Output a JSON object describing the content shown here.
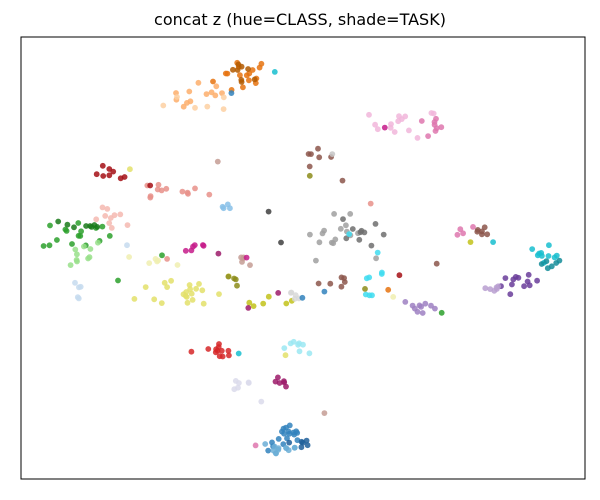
{
  "chart_data": {
    "type": "scatter",
    "title": "concat z (hue=CLASS, shade=TASK)",
    "xlabel": "",
    "ylabel": "",
    "axis_ticks": "none",
    "grid": false,
    "legend": "none",
    "xlim": [
      0,
      100
    ],
    "ylim": [
      0,
      100
    ],
    "clusters": [
      {
        "color": "#e6730f",
        "cx": 39.4,
        "cy": 91.1,
        "sx": 2.6,
        "sy": 2.2,
        "n": 16
      },
      {
        "color": "#b35a00",
        "cx": 39.6,
        "cy": 92.9,
        "sx": 1.6,
        "sy": 1.4,
        "n": 8
      },
      {
        "color": "#fdae6b",
        "cx": 32.6,
        "cy": 86.4,
        "sx": 3.1,
        "sy": 1.6,
        "n": 12
      },
      {
        "color": "#fdd0a2",
        "cx": 31.4,
        "cy": 84.6,
        "sx": 3.1,
        "sy": 1.2,
        "n": 6
      },
      {
        "color": "#f1b6da",
        "cx": 68.1,
        "cy": 80.4,
        "sx": 3.1,
        "sy": 1.6,
        "n": 14
      },
      {
        "color": "#de77ae",
        "cx": 72.2,
        "cy": 79.7,
        "sx": 1.6,
        "sy": 1.4,
        "n": 8
      },
      {
        "color": "#8c564b",
        "cx": 52.5,
        "cy": 72.4,
        "sx": 1.4,
        "sy": 1.4,
        "n": 6
      },
      {
        "color": "#a50f15",
        "cx": 15.9,
        "cy": 69.1,
        "sx": 2.2,
        "sy": 0.8,
        "n": 8
      },
      {
        "color": "#e7918a",
        "cx": 24.7,
        "cy": 64.9,
        "sx": 4.1,
        "sy": 1.0,
        "n": 12
      },
      {
        "color": "#f4b8b0",
        "cx": 16.8,
        "cy": 58.4,
        "sx": 2.0,
        "sy": 1.4,
        "n": 10
      },
      {
        "color": "#2ca02c",
        "cx": 9.9,
        "cy": 55.4,
        "sx": 3.1,
        "sy": 1.8,
        "n": 16
      },
      {
        "color": "#1a7a1a",
        "cx": 11.0,
        "cy": 57.3,
        "sx": 2.0,
        "sy": 0.9,
        "n": 8
      },
      {
        "color": "#98df8a",
        "cx": 8.5,
        "cy": 51.1,
        "sx": 3.4,
        "sy": 1.6,
        "n": 10
      },
      {
        "color": "#c6dbef",
        "cx": 9.8,
        "cy": 42.6,
        "sx": 0.6,
        "sy": 1.6,
        "n": 5
      },
      {
        "color": "#87bfe8",
        "cx": 36.9,
        "cy": 61.7,
        "sx": 1.1,
        "sy": 0.4,
        "n": 4
      },
      {
        "color": "#c51b8a",
        "cx": 30.6,
        "cy": 52.6,
        "sx": 1.5,
        "sy": 0.8,
        "n": 6
      },
      {
        "color": "#e3e16a",
        "cx": 30.1,
        "cy": 42.6,
        "sx": 4.6,
        "sy": 2.2,
        "n": 22
      },
      {
        "color": "#f0efb0",
        "cx": 24.0,
        "cy": 48.5,
        "sx": 2.2,
        "sy": 1.5,
        "n": 6
      },
      {
        "color": "#8c8c1a",
        "cx": 37.3,
        "cy": 45.4,
        "sx": 1.1,
        "sy": 0.8,
        "n": 4
      },
      {
        "color": "#c2c21a",
        "cx": 43.4,
        "cy": 40.6,
        "sx": 2.1,
        "sy": 0.7,
        "n": 6
      },
      {
        "color": "#a0a0a0",
        "cx": 55.7,
        "cy": 54.7,
        "sx": 3.3,
        "sy": 2.4,
        "n": 16
      },
      {
        "color": "#6e6e6e",
        "cx": 60.7,
        "cy": 56.2,
        "sx": 2.0,
        "sy": 2.2,
        "n": 10
      },
      {
        "color": "#d8d8d8",
        "cx": 48.0,
        "cy": 41.5,
        "sx": 1.6,
        "sy": 0.8,
        "n": 5
      },
      {
        "color": "#8c564b",
        "cx": 55.0,
        "cy": 44.8,
        "sx": 1.1,
        "sy": 0.8,
        "n": 6
      },
      {
        "color": "#c49c94",
        "cx": 39.2,
        "cy": 49.1,
        "sx": 1.1,
        "sy": 1.2,
        "n": 4
      },
      {
        "color": "#8c564b",
        "cx": 82.0,
        "cy": 55.9,
        "sx": 1.3,
        "sy": 0.6,
        "n": 6
      },
      {
        "color": "#de77ae",
        "cx": 78.1,
        "cy": 56.0,
        "sx": 1.0,
        "sy": 0.6,
        "n": 4
      },
      {
        "color": "#17becf",
        "cx": 93.5,
        "cy": 51.7,
        "sx": 1.3,
        "sy": 1.3,
        "n": 10
      },
      {
        "color": "#138c99",
        "cx": 93.8,
        "cy": 49.1,
        "sx": 1.0,
        "sy": 1.0,
        "n": 6
      },
      {
        "color": "#6a3d9a",
        "cx": 88.5,
        "cy": 44.0,
        "sx": 1.7,
        "sy": 1.0,
        "n": 12
      },
      {
        "color": "#b89fd0",
        "cx": 84.0,
        "cy": 43.2,
        "sx": 1.6,
        "sy": 0.5,
        "n": 6
      },
      {
        "color": "#9e80c2",
        "cx": 71.1,
        "cy": 38.8,
        "sx": 1.7,
        "sy": 1.0,
        "n": 10
      },
      {
        "color": "#3fdcf0",
        "cx": 62.2,
        "cy": 46.4,
        "sx": 1.1,
        "sy": 2.2,
        "n": 8
      },
      {
        "color": "#9be7f2",
        "cx": 49.7,
        "cy": 29.7,
        "sx": 2.1,
        "sy": 0.7,
        "n": 8
      },
      {
        "color": "#d62728",
        "cx": 34.4,
        "cy": 29.0,
        "sx": 2.6,
        "sy": 0.7,
        "n": 12
      },
      {
        "color": "#9c1b6a",
        "cx": 45.0,
        "cy": 22.0,
        "sx": 0.9,
        "sy": 0.5,
        "n": 6
      },
      {
        "color": "#dadaeb",
        "cx": 39.6,
        "cy": 21.4,
        "sx": 1.3,
        "sy": 0.6,
        "n": 6
      },
      {
        "color": "#3182bd",
        "cx": 47.2,
        "cy": 9.2,
        "sx": 1.7,
        "sy": 1.5,
        "n": 18
      },
      {
        "color": "#6baed6",
        "cx": 46.1,
        "cy": 7.0,
        "sx": 2.0,
        "sy": 1.1,
        "n": 12
      },
      {
        "color": "#1f5f9a",
        "cx": 49.8,
        "cy": 8.3,
        "sx": 1.1,
        "sy": 1.0,
        "n": 6
      }
    ],
    "outliers": [
      {
        "x": 34.9,
        "y": 71.8,
        "color": "#c49c94"
      },
      {
        "x": 19.3,
        "y": 70.1,
        "color": "#e3e16a"
      },
      {
        "x": 22.9,
        "y": 66.4,
        "color": "#a50f15"
      },
      {
        "x": 43.9,
        "y": 60.5,
        "color": "#404040"
      },
      {
        "x": 51.2,
        "y": 68.6,
        "color": "#8c8c1a"
      },
      {
        "x": 57.0,
        "y": 67.5,
        "color": "#8c564b"
      },
      {
        "x": 45.0,
        "y": 92.1,
        "color": "#17becf"
      },
      {
        "x": 37.3,
        "y": 87.3,
        "color": "#3182bd"
      },
      {
        "x": 64.5,
        "y": 79.5,
        "color": "#c51b8a"
      },
      {
        "x": 55.2,
        "y": 73.5,
        "color": "#c6c6c6"
      },
      {
        "x": 62.0,
        "y": 62.3,
        "color": "#e7918a"
      },
      {
        "x": 18.8,
        "y": 52.9,
        "color": "#c6dbef"
      },
      {
        "x": 25.0,
        "y": 50.6,
        "color": "#2ca02c"
      },
      {
        "x": 35.0,
        "y": 51.0,
        "color": "#9c1b6a"
      },
      {
        "x": 40.0,
        "y": 50.1,
        "color": "#c51b8a"
      },
      {
        "x": 40.6,
        "y": 48.4,
        "color": "#c49c94"
      },
      {
        "x": 25.9,
        "y": 49.8,
        "color": "#e7918a"
      },
      {
        "x": 65.1,
        "y": 42.8,
        "color": "#e6730f"
      },
      {
        "x": 61.0,
        "y": 43.0,
        "color": "#8c8c1a"
      },
      {
        "x": 53.8,
        "y": 42.4,
        "color": "#3182bd"
      },
      {
        "x": 66.0,
        "y": 41.2,
        "color": "#f0efb0"
      },
      {
        "x": 67.1,
        "y": 46.1,
        "color": "#a50f15"
      },
      {
        "x": 79.7,
        "y": 53.6,
        "color": "#c2c21a"
      },
      {
        "x": 83.7,
        "y": 53.6,
        "color": "#17becf"
      },
      {
        "x": 58.2,
        "y": 55.4,
        "color": "#3fdcf0"
      },
      {
        "x": 46.1,
        "y": 53.5,
        "color": "#404040"
      },
      {
        "x": 45.6,
        "y": 42.1,
        "color": "#9c1b6a"
      },
      {
        "x": 49.9,
        "y": 41.0,
        "color": "#3182bd"
      },
      {
        "x": 40.3,
        "y": 38.7,
        "color": "#9c1b6a"
      },
      {
        "x": 38.6,
        "y": 28.4,
        "color": "#17becf"
      },
      {
        "x": 46.9,
        "y": 28.0,
        "color": "#e3e16a"
      },
      {
        "x": 42.6,
        "y": 17.5,
        "color": "#dadaeb"
      },
      {
        "x": 53.8,
        "y": 14.9,
        "color": "#c49c94"
      },
      {
        "x": 41.6,
        "y": 7.6,
        "color": "#de77ae"
      },
      {
        "x": 17.2,
        "y": 44.9,
        "color": "#2ca02c"
      },
      {
        "x": 74.6,
        "y": 37.6,
        "color": "#2ca02c"
      },
      {
        "x": 73.7,
        "y": 48.7,
        "color": "#8c564b"
      }
    ]
  }
}
